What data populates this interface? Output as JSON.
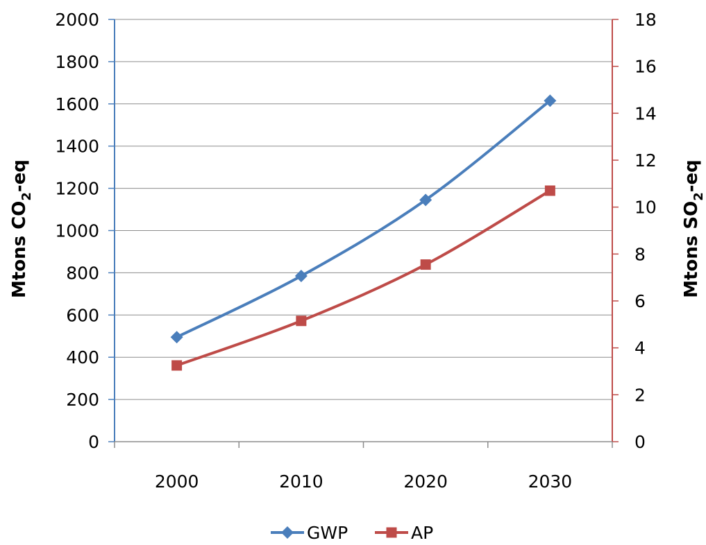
{
  "chart_data": {
    "type": "line",
    "categories": [
      "2000",
      "2010",
      "2020",
      "2030"
    ],
    "series": [
      {
        "name": "GWP",
        "axis": "left",
        "color": "#4a7ebb",
        "marker": "diamond",
        "values": [
          495,
          785,
          1145,
          1615
        ]
      },
      {
        "name": "AP",
        "axis": "right",
        "color": "#be4b48",
        "marker": "square",
        "values": [
          3.25,
          5.15,
          7.55,
          10.7
        ]
      }
    ],
    "y_left": {
      "label_main": "Mtons CO",
      "label_sub": "2",
      "label_tail": "-eq",
      "ylim": [
        0,
        2000
      ],
      "ticks": [
        "0",
        "200",
        "400",
        "600",
        "800",
        "1000",
        "1200",
        "1400",
        "1600",
        "1800",
        "2000"
      ],
      "axis_color": "#4a7ebb"
    },
    "y_right": {
      "label_main": "Mtons SO",
      "label_sub": "2",
      "label_tail": "-eq",
      "ylim": [
        0,
        18
      ],
      "ticks": [
        "0",
        "2",
        "4",
        "6",
        "8",
        "10",
        "12",
        "14",
        "16",
        "18"
      ],
      "axis_color": "#be4b48"
    },
    "grid": true,
    "grid_color": "#8c8c8c",
    "legend_position": "bottom",
    "smooth_lines": true
  }
}
